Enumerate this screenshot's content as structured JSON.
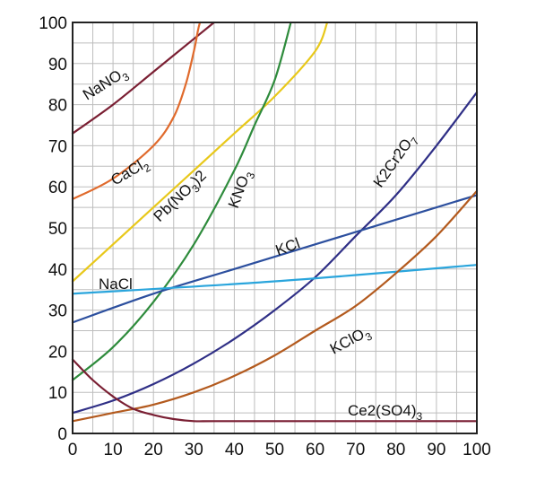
{
  "chart_data": {
    "type": "line",
    "title": "",
    "xlabel": "",
    "ylabel": "",
    "xlim": [
      0,
      100
    ],
    "ylim": [
      0,
      100
    ],
    "xticks": [
      "0",
      "10",
      "20",
      "30",
      "40",
      "50",
      "60",
      "70",
      "80",
      "90",
      "100"
    ],
    "yticks": [
      "0",
      "10",
      "20",
      "30",
      "40",
      "50",
      "60",
      "70",
      "80",
      "90",
      "100"
    ],
    "grid": true,
    "series": [
      {
        "name": "NaNO3",
        "color": "#7a1f33",
        "label": {
          "base": "NaNO",
          "sub": "3",
          "tail": ""
        },
        "x": [
          0,
          10,
          20,
          30,
          35
        ],
        "y": [
          73,
          80,
          88,
          96,
          100
        ]
      },
      {
        "name": "CaCl2",
        "color": "#e06a2c",
        "label": {
          "base": "CaCl",
          "sub": "2",
          "tail": ""
        },
        "x": [
          0,
          10,
          20,
          25,
          28,
          30,
          31,
          31.5
        ],
        "y": [
          57,
          62,
          70,
          77,
          85,
          93,
          98,
          100
        ]
      },
      {
        "name": "Pb(NO3)2",
        "color": "#e8c81a",
        "label": {
          "base": "Pb(NO",
          "sub": "3",
          "tail": ")2"
        },
        "x": [
          0,
          10,
          20,
          30,
          40,
          50,
          60,
          63
        ],
        "y": [
          37,
          46,
          55,
          64,
          73,
          82,
          93,
          100
        ]
      },
      {
        "name": "KNO3",
        "color": "#2e8b3c",
        "label": {
          "base": "KNO",
          "sub": "3",
          "tail": ""
        },
        "x": [
          0,
          10,
          20,
          30,
          40,
          45,
          50,
          54
        ],
        "y": [
          13,
          21,
          32,
          46,
          64,
          75,
          86,
          100
        ]
      },
      {
        "name": "K2Cr2O7",
        "color": "#2f2f86",
        "label": {
          "base": "K2Cr2O",
          "sub": "7",
          "tail": ""
        },
        "x": [
          0,
          10,
          20,
          30,
          40,
          50,
          60,
          70,
          80,
          90,
          100
        ],
        "y": [
          5,
          8,
          12,
          17,
          23,
          30,
          38,
          48,
          58,
          70,
          83
        ]
      },
      {
        "name": "KCl",
        "color": "#2c4f9e",
        "label": {
          "base": "KCl",
          "sub": "",
          "tail": ""
        },
        "x": [
          0,
          20,
          40,
          60,
          80,
          100
        ],
        "y": [
          27,
          34,
          40,
          46,
          52,
          58
        ]
      },
      {
        "name": "NaCl",
        "color": "#2aa5dc",
        "label": {
          "base": "NaCl",
          "sub": "",
          "tail": ""
        },
        "x": [
          0,
          50,
          100
        ],
        "y": [
          34,
          37,
          41
        ]
      },
      {
        "name": "KClO3",
        "color": "#b35a1e",
        "label": {
          "base": "KClO",
          "sub": "3",
          "tail": ""
        },
        "x": [
          0,
          10,
          20,
          30,
          40,
          50,
          60,
          70,
          80,
          90,
          100
        ],
        "y": [
          3,
          5,
          7,
          10,
          14,
          19,
          25,
          31,
          39,
          48,
          59
        ]
      },
      {
        "name": "Ce2(SO4)3",
        "color": "#7a1f33",
        "label": {
          "base": "Ce2(SO4)",
          "sub": "3",
          "tail": ""
        },
        "x": [
          0,
          5,
          10,
          15,
          20,
          25,
          30,
          35,
          50,
          100
        ],
        "y": [
          18,
          13,
          9,
          6,
          4.5,
          3.5,
          3,
          3,
          3,
          3
        ]
      }
    ]
  }
}
